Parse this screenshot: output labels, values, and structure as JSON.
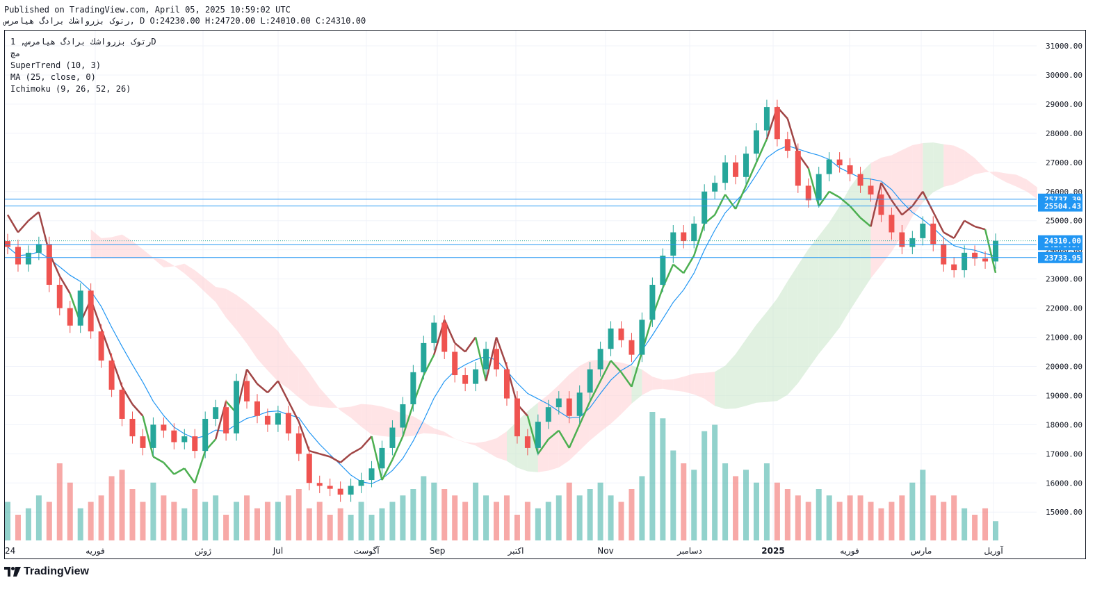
{
  "header": {
    "published": "Published on TradingView.com, April 05, 2025 10:59:02 UTC",
    "ohlc_line": "رتوک بزرواشك برادگ هیامرس, D O:24230.00 H:24720.00 L:24010.00 C:24310.00"
  },
  "legend": {
    "symbol": "رتوک بزرواشك برادگ هیامرس, 1D",
    "sub": "مچ",
    "indicator1": "SuperTrend (10, 3)",
    "indicator2": "MA (25, close, 0)",
    "indicator3": "Ichimoku (9, 26, 52, 26)"
  },
  "brand": {
    "name": "TradingView"
  },
  "colors": {
    "up": "#26a69a",
    "down": "#ef5350",
    "supertrend_up": "#4caf50",
    "supertrend_down": "#a04545",
    "ma": "#2196f3",
    "cloud_green": "#c8e6c9",
    "cloud_red": "#ffcdd2",
    "level_line": "#2196f3"
  },
  "chart_data": {
    "type": "candlestick",
    "y_axis_ticks": [
      "31000.00",
      "30000.00",
      "29000.00",
      "28000.00",
      "27000.00",
      "26000.00",
      "25000.00",
      "24000.00",
      "23000.00",
      "22000.00",
      "21000.00",
      "20000.00",
      "19000.00",
      "18000.00",
      "17000.00",
      "16000.00",
      "15000.00"
    ],
    "ylim": [
      14000,
      31400
    ],
    "x_axis_ticks": [
      "24",
      "فوریه",
      "ژوئن",
      "Jul",
      "آگوست",
      "Sep",
      "اکتبر",
      "Nov",
      "دسامبر",
      "2025",
      "فوریه",
      "مارس",
      "آوریل"
    ],
    "horizontal_levels": [
      25737.39,
      25504.43,
      24176.57,
      23733.95
    ],
    "level_labels": [
      "25737.39",
      "25504.43",
      "24176.57",
      "23733.95"
    ],
    "last_price": 24310.0,
    "last_price_label": "24310.00",
    "close": [
      24100,
      23500,
      23900,
      24200,
      22800,
      22000,
      21400,
      22600,
      21200,
      20200,
      19200,
      18200,
      17600,
      17200,
      18000,
      17800,
      17400,
      17600,
      17100,
      18200,
      18600,
      17700,
      19500,
      18800,
      18300,
      18000,
      18400,
      17700,
      17000,
      16000,
      15900,
      15800,
      15600,
      15900,
      16100,
      16500,
      17200,
      17900,
      18700,
      19800,
      20800,
      21500,
      20500,
      19700,
      19400,
      19900,
      20600,
      19900,
      18900,
      17600,
      17200,
      18100,
      18600,
      18900,
      18300,
      19100,
      19900,
      20600,
      21300,
      20900,
      20400,
      21600,
      22800,
      23800,
      24600,
      24300,
      24900,
      26000,
      26300,
      27000,
      26500,
      27300,
      28100,
      28900,
      27800,
      27400,
      26200,
      25700,
      26600,
      27100,
      26900,
      26600,
      26200,
      25900,
      25200,
      24600,
      24100,
      24400,
      24900,
      24200,
      23500,
      23300,
      23900,
      23700,
      23600,
      24310
    ],
    "volume_relative": [
      0.3,
      0.2,
      0.25,
      0.35,
      0.3,
      0.6,
      0.45,
      0.25,
      0.3,
      0.35,
      0.5,
      0.55,
      0.4,
      0.3,
      0.45,
      0.35,
      0.3,
      0.25,
      0.4,
      0.3,
      0.35,
      0.2,
      0.3,
      0.35,
      0.25,
      0.3,
      0.3,
      0.35,
      0.4,
      0.25,
      0.3,
      0.2,
      0.25,
      0.2,
      0.3,
      0.2,
      0.25,
      0.3,
      0.35,
      0.4,
      0.5,
      0.45,
      0.4,
      0.35,
      0.3,
      0.45,
      0.35,
      0.3,
      0.35,
      0.2,
      0.3,
      0.25,
      0.3,
      0.35,
      0.45,
      0.35,
      0.4,
      0.45,
      0.35,
      0.3,
      0.4,
      0.5,
      1.0,
      0.95,
      0.7,
      0.6,
      0.55,
      0.85,
      0.9,
      0.6,
      0.5,
      0.55,
      0.45,
      0.6,
      0.45,
      0.4,
      0.35,
      0.3,
      0.4,
      0.35,
      0.3,
      0.35,
      0.35,
      0.3,
      0.25,
      0.3,
      0.35,
      0.45,
      0.55,
      0.35,
      0.3,
      0.35,
      0.25,
      0.2,
      0.25,
      0.15
    ]
  }
}
